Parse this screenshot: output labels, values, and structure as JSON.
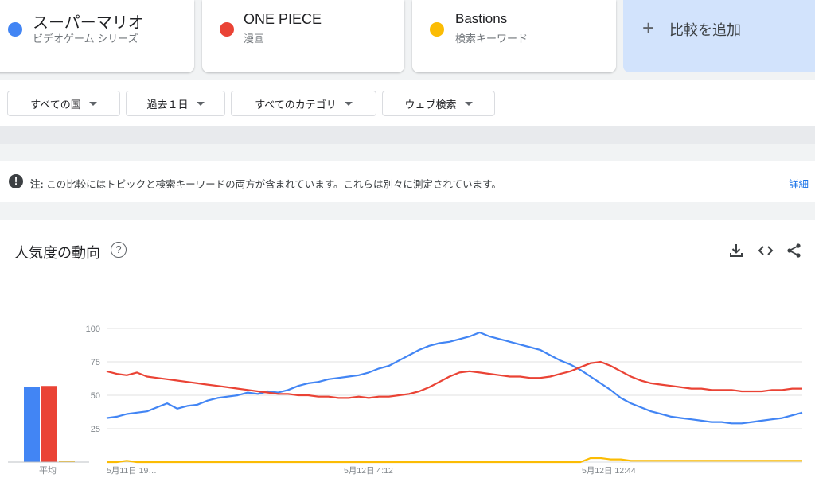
{
  "terms": [
    {
      "name": "スーパーマリオ",
      "type": "ビデオゲーム シリーズ",
      "color": "#4285f4"
    },
    {
      "name": "ONE PIECE",
      "type": "漫画",
      "color": "#ea4335"
    },
    {
      "name": "Bastions",
      "type": "検索キーワード",
      "color": "#fbbc04"
    }
  ],
  "add_compare": {
    "label": "比較を追加",
    "icon": "plus-icon"
  },
  "filters": {
    "region": "すべての国",
    "time": "過去１日",
    "category": "すべてのカテゴリ",
    "search_type": "ウェブ検索"
  },
  "note": {
    "icon": "exclamation-icon",
    "label": "注:",
    "text": "この比較にはトピックと検索キーワードの両方が含まれています。これらは別々に測定されています。",
    "link": "詳細"
  },
  "trend": {
    "title": "人気度の動向",
    "icons": [
      "help-icon",
      "download-icon",
      "embed-icon",
      "share-icon"
    ]
  },
  "chart_data": {
    "type": "line",
    "y_ticks": [
      100,
      75,
      50,
      25
    ],
    "ylim": [
      0,
      100
    ],
    "x_ticks": [
      "5月11日 19…",
      "5月12日 4:12",
      "5月12日 12:44"
    ],
    "average_label": "平均",
    "averages": {
      "スーパーマリオ": 56,
      "ONE PIECE": 57,
      "Bastions": 1
    },
    "series": [
      {
        "name": "スーパーマリオ",
        "color": "#4285f4",
        "values": [
          33,
          34,
          36,
          37,
          38,
          41,
          44,
          40,
          42,
          43,
          46,
          48,
          49,
          50,
          52,
          51,
          53,
          52,
          54,
          57,
          59,
          60,
          62,
          63,
          64,
          65,
          67,
          70,
          72,
          76,
          80,
          84,
          87,
          89,
          90,
          92,
          94,
          97,
          94,
          92,
          90,
          88,
          86,
          84,
          80,
          76,
          73,
          69,
          64,
          59,
          54,
          48,
          44,
          41,
          38,
          36,
          34,
          33,
          32,
          31,
          30,
          30,
          29,
          29,
          30,
          31,
          32,
          33,
          35,
          37
        ]
      },
      {
        "name": "ONE PIECE",
        "color": "#ea4335",
        "values": [
          68,
          66,
          65,
          67,
          64,
          63,
          62,
          61,
          60,
          59,
          58,
          57,
          56,
          55,
          54,
          53,
          52,
          51,
          51,
          50,
          50,
          49,
          49,
          48,
          48,
          49,
          48,
          49,
          49,
          50,
          51,
          53,
          56,
          60,
          64,
          67,
          68,
          67,
          66,
          65,
          64,
          64,
          63,
          63,
          64,
          66,
          68,
          71,
          74,
          75,
          72,
          68,
          64,
          61,
          59,
          58,
          57,
          56,
          55,
          55,
          54,
          54,
          54,
          53,
          53,
          53,
          54,
          54,
          55,
          55
        ]
      },
      {
        "name": "Bastions",
        "color": "#fbbc04",
        "values": [
          0,
          0,
          1,
          0,
          0,
          0,
          0,
          0,
          0,
          0,
          0,
          0,
          0,
          0,
          0,
          0,
          0,
          0,
          0,
          0,
          0,
          0,
          0,
          0,
          0,
          0,
          0,
          0,
          0,
          0,
          0,
          0,
          0,
          0,
          0,
          0,
          0,
          0,
          0,
          0,
          0,
          0,
          0,
          0,
          0,
          0,
          0,
          0,
          3,
          3,
          2,
          2,
          1,
          1,
          1,
          1,
          1,
          1,
          1,
          1,
          1,
          1,
          1,
          1,
          1,
          1,
          1,
          1,
          1,
          1
        ]
      }
    ]
  }
}
